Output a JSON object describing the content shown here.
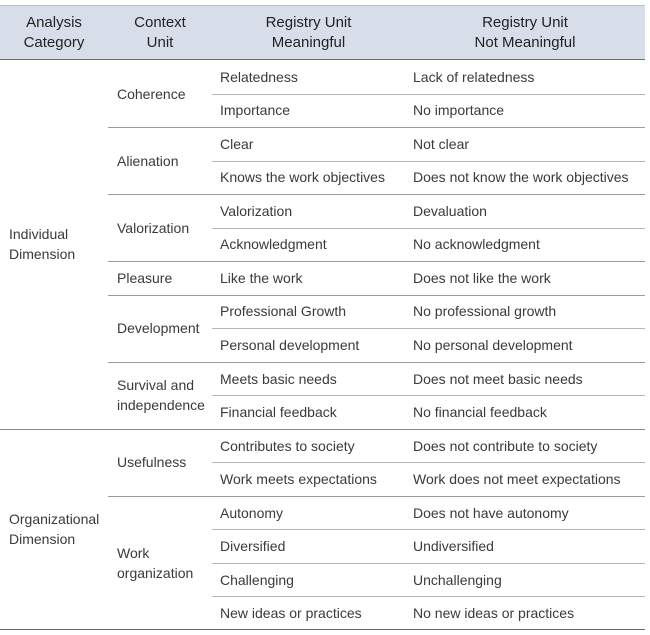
{
  "header": [
    [
      "Analysis",
      "Category"
    ],
    [
      "Context",
      "Unit"
    ],
    [
      "Registry Unit",
      "Meaningful"
    ],
    [
      "Registry Unit",
      "Not Meaningful"
    ]
  ],
  "categories": [
    {
      "label": "Individual Dimension",
      "contexts": [
        {
          "label": "Coherence",
          "rows": [
            [
              "Relatedness",
              "Lack of relatedness"
            ],
            [
              "Importance",
              "No importance"
            ]
          ]
        },
        {
          "label": "Alienation",
          "rows": [
            [
              "Clear",
              "Not clear"
            ],
            [
              "Knows the work objectives",
              "Does not know the work objectives"
            ]
          ]
        },
        {
          "label": "Valorization",
          "rows": [
            [
              "Valorization",
              "Devaluation"
            ],
            [
              "Acknowledgment",
              "No acknowledgment"
            ]
          ]
        },
        {
          "label": "Pleasure",
          "rows": [
            [
              "Like the work",
              "Does not like the work"
            ]
          ]
        },
        {
          "label": "Development",
          "rows": [
            [
              "Professional Growth",
              "No professional growth"
            ],
            [
              "Personal development",
              "No personal development"
            ]
          ]
        },
        {
          "label": "Survival and independence",
          "rows": [
            [
              "Meets basic needs",
              "Does not meet basic needs"
            ],
            [
              "Financial feedback",
              "No financial feedback"
            ]
          ]
        }
      ]
    },
    {
      "label": "Organizational Dimension",
      "contexts": [
        {
          "label": "Usefulness",
          "rows": [
            [
              "Contributes to society",
              "Does not contribute to society"
            ],
            [
              "Work meets expectations",
              "Work does not meet expectations"
            ]
          ]
        },
        {
          "label": "Work organization",
          "rows": [
            [
              "Autonomy",
              "Does not have autonomy"
            ],
            [
              "Diversified",
              "Undiversified"
            ],
            [
              "Challenging",
              "Unchallenging"
            ],
            [
              "New ideas or practices",
              "No new ideas or practices"
            ]
          ]
        }
      ]
    }
  ]
}
